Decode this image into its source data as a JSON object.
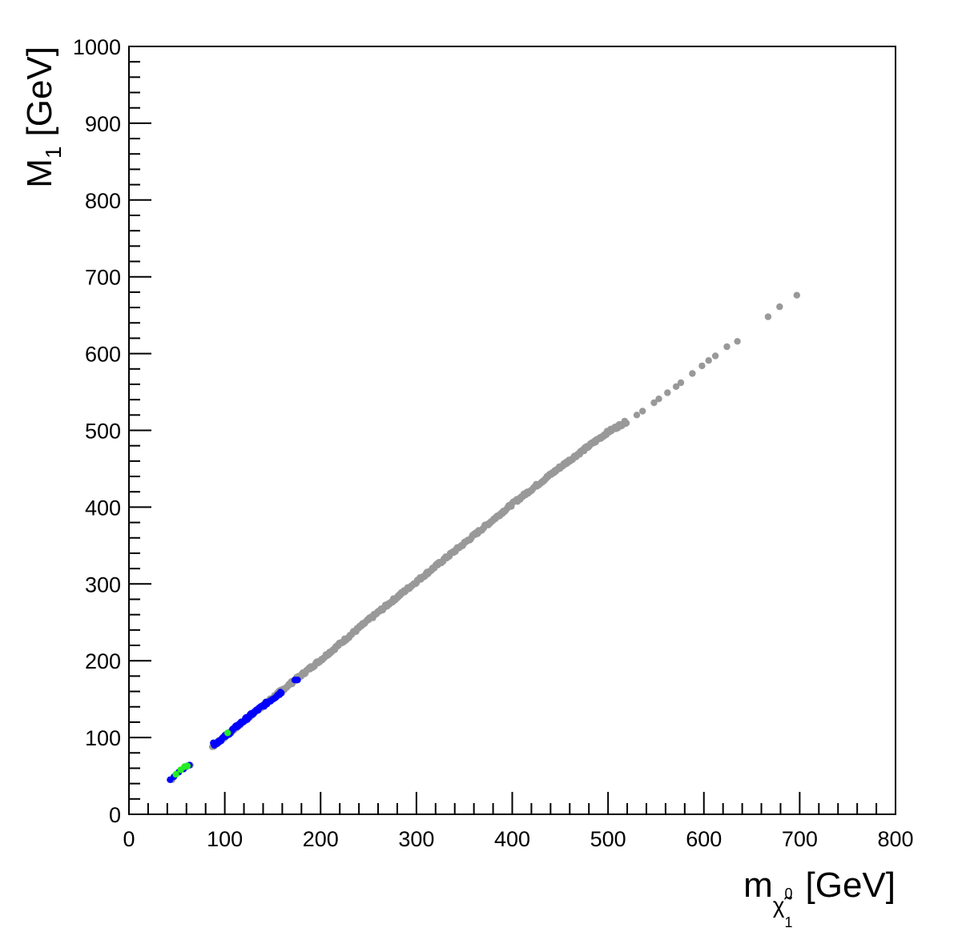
{
  "chart_data": {
    "type": "scatter",
    "title": "",
    "xlabel": {
      "base": "m",
      "subscript_symbol": "χ̃",
      "subscript_sup": "0",
      "subscript_sub": "1",
      "unit": "[GeV]"
    },
    "ylabel": {
      "base": "M",
      "subscript": "1",
      "unit": "[GeV]"
    },
    "xlim": [
      0,
      800
    ],
    "ylim": [
      0,
      1000
    ],
    "x_ticks": [
      0,
      100,
      200,
      300,
      400,
      500,
      600,
      700,
      800
    ],
    "y_ticks": [
      0,
      100,
      200,
      300,
      400,
      500,
      600,
      700,
      800,
      900,
      1000
    ],
    "grid": false,
    "legend": "none",
    "series": [
      {
        "color": "#999999",
        "band": [
          {
            "x": 87,
            "y": 88
          },
          {
            "x": 100,
            "y": 101
          },
          {
            "x": 150,
            "y": 152
          },
          {
            "x": 200,
            "y": 201
          },
          {
            "x": 250,
            "y": 253
          },
          {
            "x": 300,
            "y": 303
          },
          {
            "x": 350,
            "y": 353
          },
          {
            "x": 400,
            "y": 404
          },
          {
            "x": 450,
            "y": 452
          },
          {
            "x": 500,
            "y": 498
          },
          {
            "x": 520,
            "y": 512
          }
        ],
        "points": [
          {
            "x": 45,
            "y": 45
          },
          {
            "x": 52,
            "y": 55
          },
          {
            "x": 60,
            "y": 62
          },
          {
            "x": 64,
            "y": 64
          },
          {
            "x": 530,
            "y": 520
          },
          {
            "x": 536,
            "y": 525
          },
          {
            "x": 548,
            "y": 536
          },
          {
            "x": 553,
            "y": 541
          },
          {
            "x": 562,
            "y": 549
          },
          {
            "x": 571,
            "y": 557
          },
          {
            "x": 576,
            "y": 562
          },
          {
            "x": 588,
            "y": 574
          },
          {
            "x": 598,
            "y": 584
          },
          {
            "x": 605,
            "y": 591
          },
          {
            "x": 612,
            "y": 597
          },
          {
            "x": 624,
            "y": 609
          },
          {
            "x": 635,
            "y": 616
          },
          {
            "x": 667,
            "y": 648
          },
          {
            "x": 679,
            "y": 661
          },
          {
            "x": 697,
            "y": 676
          }
        ]
      },
      {
        "color": "#0000ff",
        "band": [
          {
            "x": 89,
            "y": 91
          },
          {
            "x": 100,
            "y": 101
          },
          {
            "x": 115,
            "y": 117
          },
          {
            "x": 130,
            "y": 132
          },
          {
            "x": 145,
            "y": 146
          },
          {
            "x": 160,
            "y": 160
          }
        ],
        "points": [
          {
            "x": 43,
            "y": 45
          },
          {
            "x": 47,
            "y": 49
          },
          {
            "x": 52,
            "y": 55
          },
          {
            "x": 57,
            "y": 59
          },
          {
            "x": 61,
            "y": 63
          },
          {
            "x": 63,
            "y": 64
          },
          {
            "x": 88,
            "y": 93
          },
          {
            "x": 91,
            "y": 93
          },
          {
            "x": 173,
            "y": 175
          },
          {
            "x": 176,
            "y": 175
          }
        ]
      },
      {
        "color": "#22ee22",
        "points": [
          {
            "x": 49,
            "y": 52
          },
          {
            "x": 54,
            "y": 58
          },
          {
            "x": 58,
            "y": 62
          },
          {
            "x": 61,
            "y": 63
          },
          {
            "x": 103,
            "y": 106
          }
        ]
      }
    ]
  }
}
